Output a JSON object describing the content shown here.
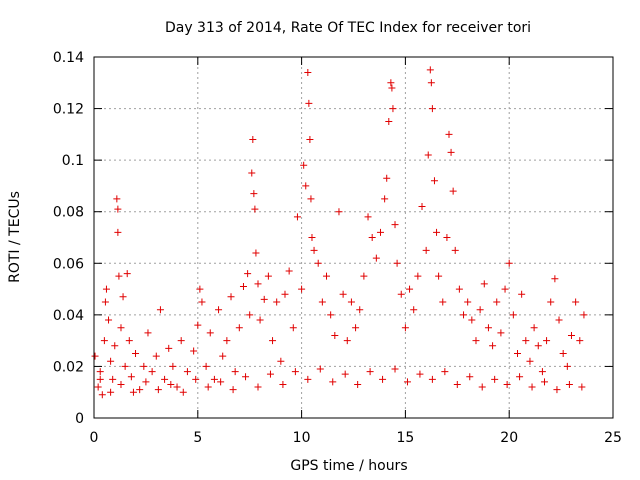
{
  "chart_data": {
    "type": "scatter",
    "title": "Day 313 of 2014, Rate Of TEC Index for receiver tori",
    "xlabel": "GPS time / hours",
    "ylabel": "ROTI / TECUs",
    "xlim": [
      0,
      25
    ],
    "ylim": [
      0,
      0.14
    ],
    "grid": true,
    "marker": "+",
    "xticks": [
      {
        "value": 0,
        "label": "0"
      },
      {
        "value": 5,
        "label": "5"
      },
      {
        "value": 10,
        "label": "10"
      },
      {
        "value": 15,
        "label": "15"
      },
      {
        "value": 20,
        "label": "20"
      },
      {
        "value": 25,
        "label": "25"
      }
    ],
    "yticks": [
      {
        "value": 0,
        "label": "0"
      },
      {
        "value": 0.02,
        "label": "0.02"
      },
      {
        "value": 0.04,
        "label": "0.04"
      },
      {
        "value": 0.06,
        "label": "0.06"
      },
      {
        "value": 0.08,
        "label": "0.08"
      },
      {
        "value": 0.1,
        "label": "0.1"
      },
      {
        "value": 0.12,
        "label": "0.12"
      },
      {
        "value": 0.14,
        "label": "0.14"
      }
    ],
    "series": [
      {
        "name": "ROTI",
        "color": "#e00000",
        "points": [
          [
            0.05,
            0.024
          ],
          [
            0.2,
            0.012
          ],
          [
            0.3,
            0.018
          ],
          [
            0.4,
            0.009
          ],
          [
            0.5,
            0.03
          ],
          [
            0.55,
            0.045
          ],
          [
            0.6,
            0.05
          ],
          [
            0.7,
            0.038
          ],
          [
            0.8,
            0.022
          ],
          [
            0.9,
            0.015
          ],
          [
            1.0,
            0.028
          ],
          [
            1.1,
            0.085
          ],
          [
            1.15,
            0.081
          ],
          [
            1.15,
            0.072
          ],
          [
            1.2,
            0.055
          ],
          [
            1.3,
            0.035
          ],
          [
            1.4,
            0.047
          ],
          [
            1.5,
            0.02
          ],
          [
            1.6,
            0.056
          ],
          [
            1.7,
            0.03
          ],
          [
            1.8,
            0.016
          ],
          [
            2.0,
            0.025
          ],
          [
            2.2,
            0.011
          ],
          [
            2.4,
            0.02
          ],
          [
            2.6,
            0.033
          ],
          [
            2.8,
            0.018
          ],
          [
            3.0,
            0.024
          ],
          [
            3.2,
            0.042
          ],
          [
            3.4,
            0.015
          ],
          [
            3.6,
            0.027
          ],
          [
            3.8,
            0.02
          ],
          [
            4.0,
            0.012
          ],
          [
            4.2,
            0.03
          ],
          [
            4.5,
            0.018
          ],
          [
            4.8,
            0.026
          ],
          [
            5.0,
            0.036
          ],
          [
            5.1,
            0.05
          ],
          [
            5.2,
            0.045
          ],
          [
            5.4,
            0.02
          ],
          [
            5.6,
            0.033
          ],
          [
            5.8,
            0.015
          ],
          [
            6.0,
            0.042
          ],
          [
            6.2,
            0.024
          ],
          [
            6.4,
            0.03
          ],
          [
            6.6,
            0.047
          ],
          [
            6.8,
            0.018
          ],
          [
            7.0,
            0.035
          ],
          [
            7.2,
            0.051
          ],
          [
            7.4,
            0.056
          ],
          [
            7.5,
            0.04
          ],
          [
            7.6,
            0.095
          ],
          [
            7.65,
            0.108
          ],
          [
            7.7,
            0.087
          ],
          [
            7.75,
            0.081
          ],
          [
            7.8,
            0.064
          ],
          [
            7.9,
            0.052
          ],
          [
            8.0,
            0.038
          ],
          [
            8.2,
            0.046
          ],
          [
            8.4,
            0.055
          ],
          [
            8.6,
            0.03
          ],
          [
            8.8,
            0.045
          ],
          [
            9.0,
            0.022
          ],
          [
            9.2,
            0.048
          ],
          [
            9.4,
            0.057
          ],
          [
            9.6,
            0.035
          ],
          [
            9.8,
            0.078
          ],
          [
            10.0,
            0.05
          ],
          [
            10.1,
            0.098
          ],
          [
            10.2,
            0.09
          ],
          [
            10.3,
            0.134
          ],
          [
            10.35,
            0.122
          ],
          [
            10.4,
            0.108
          ],
          [
            10.45,
            0.085
          ],
          [
            10.5,
            0.07
          ],
          [
            10.6,
            0.065
          ],
          [
            10.8,
            0.06
          ],
          [
            11.0,
            0.045
          ],
          [
            11.2,
            0.055
          ],
          [
            11.4,
            0.04
          ],
          [
            11.6,
            0.032
          ],
          [
            11.8,
            0.08
          ],
          [
            12.0,
            0.048
          ],
          [
            12.2,
            0.03
          ],
          [
            12.4,
            0.045
          ],
          [
            12.6,
            0.035
          ],
          [
            12.8,
            0.042
          ],
          [
            13.0,
            0.055
          ],
          [
            13.2,
            0.078
          ],
          [
            13.4,
            0.07
          ],
          [
            13.6,
            0.062
          ],
          [
            13.8,
            0.072
          ],
          [
            14.0,
            0.085
          ],
          [
            14.1,
            0.093
          ],
          [
            14.2,
            0.115
          ],
          [
            14.3,
            0.13
          ],
          [
            14.35,
            0.128
          ],
          [
            14.4,
            0.12
          ],
          [
            14.5,
            0.075
          ],
          [
            14.6,
            0.06
          ],
          [
            14.8,
            0.048
          ],
          [
            15.0,
            0.035
          ],
          [
            15.2,
            0.05
          ],
          [
            15.4,
            0.042
          ],
          [
            15.6,
            0.055
          ],
          [
            15.8,
            0.082
          ],
          [
            16.0,
            0.065
          ],
          [
            16.1,
            0.102
          ],
          [
            16.2,
            0.135
          ],
          [
            16.25,
            0.13
          ],
          [
            16.3,
            0.12
          ],
          [
            16.4,
            0.092
          ],
          [
            16.5,
            0.072
          ],
          [
            16.6,
            0.055
          ],
          [
            16.8,
            0.045
          ],
          [
            17.0,
            0.07
          ],
          [
            17.1,
            0.11
          ],
          [
            17.2,
            0.103
          ],
          [
            17.3,
            0.088
          ],
          [
            17.4,
            0.065
          ],
          [
            17.6,
            0.05
          ],
          [
            17.8,
            0.04
          ],
          [
            18.0,
            0.045
          ],
          [
            18.2,
            0.038
          ],
          [
            18.4,
            0.03
          ],
          [
            18.6,
            0.042
          ],
          [
            18.8,
            0.052
          ],
          [
            19.0,
            0.035
          ],
          [
            19.2,
            0.028
          ],
          [
            19.4,
            0.045
          ],
          [
            19.6,
            0.033
          ],
          [
            19.8,
            0.05
          ],
          [
            20.0,
            0.06
          ],
          [
            20.2,
            0.04
          ],
          [
            20.4,
            0.025
          ],
          [
            20.6,
            0.048
          ],
          [
            20.8,
            0.03
          ],
          [
            21.0,
            0.022
          ],
          [
            21.2,
            0.035
          ],
          [
            21.4,
            0.028
          ],
          [
            21.6,
            0.018
          ],
          [
            21.8,
            0.03
          ],
          [
            22.0,
            0.045
          ],
          [
            22.2,
            0.054
          ],
          [
            22.4,
            0.038
          ],
          [
            22.6,
            0.025
          ],
          [
            22.8,
            0.02
          ],
          [
            23.0,
            0.032
          ],
          [
            23.2,
            0.045
          ],
          [
            23.4,
            0.03
          ],
          [
            23.6,
            0.04
          ],
          [
            0.3,
            0.015
          ],
          [
            0.8,
            0.01
          ],
          [
            1.3,
            0.013
          ],
          [
            1.9,
            0.01
          ],
          [
            2.5,
            0.014
          ],
          [
            3.1,
            0.011
          ],
          [
            3.7,
            0.013
          ],
          [
            4.3,
            0.01
          ],
          [
            4.9,
            0.015
          ],
          [
            5.5,
            0.012
          ],
          [
            6.1,
            0.014
          ],
          [
            6.7,
            0.011
          ],
          [
            7.3,
            0.016
          ],
          [
            7.9,
            0.012
          ],
          [
            8.5,
            0.017
          ],
          [
            9.1,
            0.013
          ],
          [
            9.7,
            0.018
          ],
          [
            10.3,
            0.015
          ],
          [
            10.9,
            0.019
          ],
          [
            11.5,
            0.014
          ],
          [
            12.1,
            0.017
          ],
          [
            12.7,
            0.013
          ],
          [
            13.3,
            0.018
          ],
          [
            13.9,
            0.015
          ],
          [
            14.5,
            0.019
          ],
          [
            15.1,
            0.014
          ],
          [
            15.7,
            0.017
          ],
          [
            16.3,
            0.015
          ],
          [
            16.9,
            0.018
          ],
          [
            17.5,
            0.013
          ],
          [
            18.1,
            0.016
          ],
          [
            18.7,
            0.012
          ],
          [
            19.3,
            0.015
          ],
          [
            19.9,
            0.013
          ],
          [
            20.5,
            0.016
          ],
          [
            21.1,
            0.012
          ],
          [
            21.7,
            0.014
          ],
          [
            22.3,
            0.011
          ],
          [
            22.9,
            0.013
          ],
          [
            23.5,
            0.012
          ]
        ]
      }
    ]
  }
}
